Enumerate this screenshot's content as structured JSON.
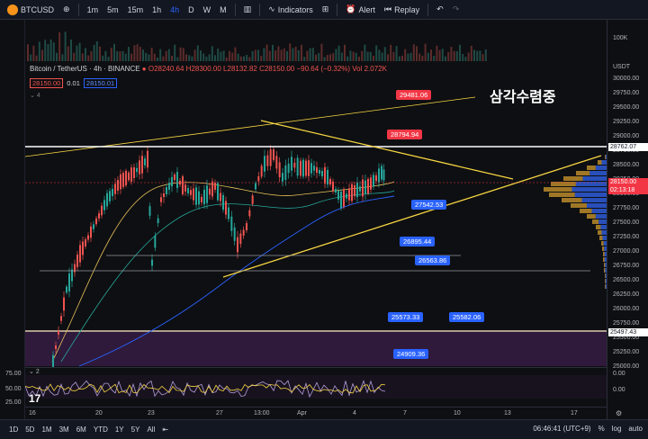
{
  "topbar": {
    "symbol": "BTCUSD",
    "intervals": [
      "1m",
      "5m",
      "15m",
      "1h",
      "4h",
      "D",
      "W",
      "M"
    ],
    "indicators_label": "Indicators",
    "alert_label": "Alert",
    "replay_label": "Replay"
  },
  "legend": {
    "title": "Bitcoin / TetherUS · 4h · BINANCE",
    "ohlc": "O28240.64 H28300.00 L28132.82 C28150.00 −90.64 (−0.32%) Vol 2.072K",
    "bid": "28150.00",
    "spread": "0.01",
    "ask": "28150.01",
    "indicator_count": "4"
  },
  "annotations": {
    "korean_label": "삼각수렴중",
    "callouts": [
      {
        "text": "29481.06",
        "color": "red"
      },
      {
        "text": "28794.94",
        "color": "red"
      },
      {
        "text": "27542.53",
        "color": "blue"
      },
      {
        "text": "26895.44",
        "color": "blue"
      },
      {
        "text": "26563.86",
        "color": "blue"
      },
      {
        "text": "25573.33",
        "color": "blue"
      },
      {
        "text": "25582.06",
        "color": "blue"
      },
      {
        "text": "24909.36",
        "color": "blue"
      }
    ]
  },
  "price_axis": {
    "volume_label": "100K",
    "currency": "USDT",
    "ticks": [
      "30000.00",
      "29750.00",
      "29500.00",
      "29250.00",
      "29000.00",
      "28750.00",
      "28500.00",
      "28250.00",
      "28000.00",
      "27750.00",
      "27500.00",
      "27250.00",
      "27000.00",
      "26750.00",
      "26500.00",
      "26250.00",
      "26000.00",
      "25750.00",
      "25500.00",
      "25250.00",
      "25000.00"
    ],
    "tag_resistance": "28762.07",
    "tag_current": "28150.00",
    "tag_countdown": "02:13:18",
    "tag_support": "25497.43"
  },
  "oscillator": {
    "label": "2",
    "ticks": [
      "75.00",
      "50.00",
      "25.00"
    ],
    "right_ticks": [
      "0.00",
      "0.00"
    ]
  },
  "time_axis": {
    "labels": [
      "16",
      "20",
      "23",
      "27",
      "13:00",
      "Apr",
      "4",
      "7",
      "10",
      "13",
      "17"
    ]
  },
  "bottombar": {
    "ranges": [
      "1D",
      "5D",
      "1M",
      "3M",
      "6M",
      "YTD",
      "1Y",
      "5Y",
      "All"
    ],
    "clock": "06:46:41 (UTC+9)",
    "percent": "%",
    "log": "log",
    "auto": "auto"
  },
  "colors": {
    "up": "#26a69a",
    "down": "#ef5350",
    "trendline": "#f5d442",
    "background": "#0e0f12"
  }
}
